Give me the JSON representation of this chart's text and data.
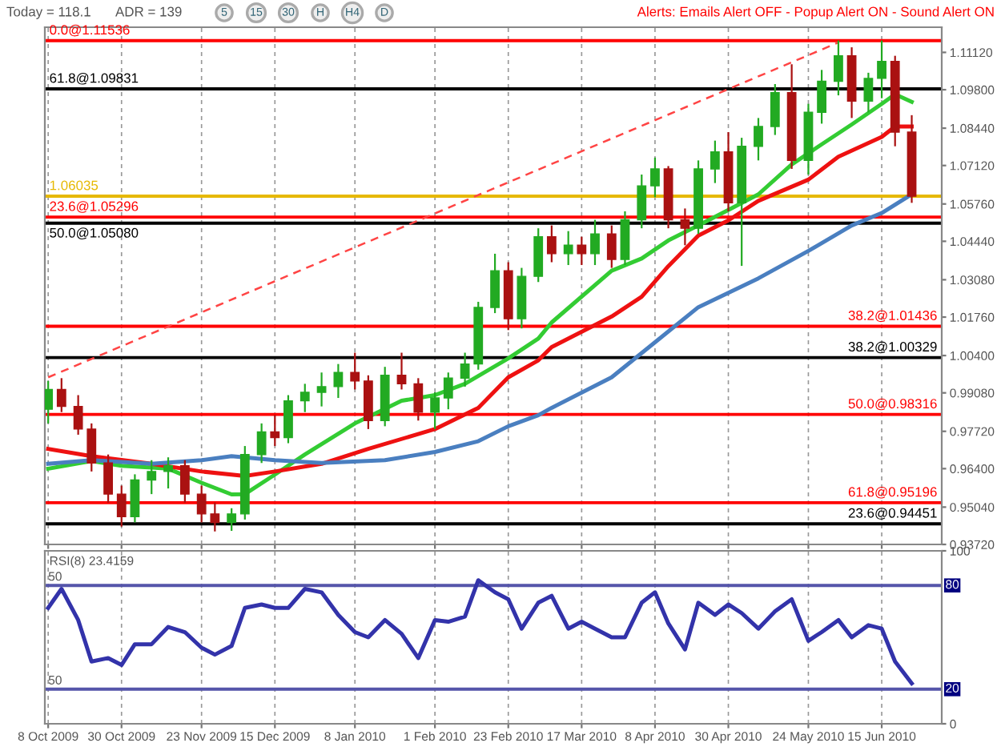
{
  "chart_data": [
    {
      "type": "candlestick",
      "x": [
        "2009-10-08",
        "2009-10-12",
        "2009-10-17",
        "2009-10-21",
        "2009-10-26",
        "2009-10-30",
        "2009-11-03",
        "2009-11-08",
        "2009-11-13",
        "2009-11-18",
        "2009-11-23",
        "2009-11-27",
        "2009-12-02",
        "2009-12-06",
        "2009-12-11",
        "2009-12-15",
        "2009-12-19",
        "2009-12-24",
        "2009-12-29",
        "2010-01-03",
        "2010-01-08",
        "2010-01-12",
        "2010-01-17",
        "2010-01-22",
        "2010-01-27",
        "2010-02-01",
        "2010-02-05",
        "2010-02-10",
        "2010-02-14",
        "2010-02-19",
        "2010-02-23",
        "2010-02-27",
        "2010-03-04",
        "2010-03-08",
        "2010-03-13",
        "2010-03-17",
        "2010-03-21",
        "2010-03-26",
        "2010-03-30",
        "2010-04-04",
        "2010-04-08",
        "2010-04-12",
        "2010-04-17",
        "2010-04-21",
        "2010-04-26",
        "2010-04-30",
        "2010-05-04",
        "2010-05-09",
        "2010-05-14",
        "2010-05-19",
        "2010-05-24",
        "2010-05-28",
        "2010-06-02",
        "2010-06-06",
        "2010-06-11",
        "2010-06-15",
        "2010-06-19",
        "2010-06-24"
      ],
      "ohlc": [
        [
          0.985,
          0.995,
          0.98,
          0.992
        ],
        [
          0.992,
          0.996,
          0.984,
          0.986
        ],
        [
          0.986,
          0.99,
          0.976,
          0.978
        ],
        [
          0.978,
          0.98,
          0.963,
          0.966
        ],
        [
          0.966,
          0.969,
          0.952,
          0.955
        ],
        [
          0.955,
          0.958,
          0.9435,
          0.947
        ],
        [
          0.947,
          0.962,
          0.945,
          0.96
        ],
        [
          0.96,
          0.967,
          0.955,
          0.963
        ],
        [
          0.963,
          0.968,
          0.957,
          0.965
        ],
        [
          0.965,
          0.967,
          0.952,
          0.955
        ],
        [
          0.955,
          0.958,
          0.945,
          0.948
        ],
        [
          0.948,
          0.952,
          0.9418,
          0.945
        ],
        [
          0.945,
          0.95,
          0.942,
          0.948
        ],
        [
          0.948,
          0.972,
          0.946,
          0.969
        ],
        [
          0.969,
          0.98,
          0.966,
          0.977
        ],
        [
          0.977,
          0.983,
          0.972,
          0.975
        ],
        [
          0.975,
          0.99,
          0.973,
          0.988
        ],
        [
          0.988,
          0.994,
          0.984,
          0.991
        ],
        [
          0.991,
          0.998,
          0.986,
          0.993
        ],
        [
          0.993,
          1.001,
          0.989,
          0.998
        ],
        [
          0.998,
          1.005,
          0.992,
          0.995
        ],
        [
          0.995,
          0.997,
          0.978,
          0.981
        ],
        [
          0.981,
          1.0,
          0.979,
          0.997
        ],
        [
          0.997,
          1.005,
          0.992,
          0.994
        ],
        [
          0.994,
          0.996,
          0.981,
          0.984
        ],
        [
          0.984,
          0.991,
          0.978,
          0.989
        ],
        [
          0.989,
          0.998,
          0.985,
          0.996
        ],
        [
          0.996,
          1.005,
          0.993,
          1.001
        ],
        [
          1.001,
          1.023,
          0.999,
          1.021
        ],
        [
          1.021,
          1.04,
          1.019,
          1.034
        ],
        [
          1.034,
          1.037,
          1.013,
          1.017
        ],
        [
          1.017,
          1.035,
          1.0136,
          1.032
        ],
        [
          1.032,
          1.049,
          1.03,
          1.046
        ],
        [
          1.046,
          1.05,
          1.037,
          1.04
        ],
        [
          1.04,
          1.048,
          1.036,
          1.043
        ],
        [
          1.043,
          1.046,
          1.036,
          1.04
        ],
        [
          1.04,
          1.052,
          1.036,
          1.047
        ],
        [
          1.047,
          1.05,
          1.035,
          1.038
        ],
        [
          1.038,
          1.055,
          1.036,
          1.052
        ],
        [
          1.052,
          1.068,
          1.049,
          1.064
        ],
        [
          1.064,
          1.074,
          1.06,
          1.07
        ],
        [
          1.07,
          1.071,
          1.049,
          1.052
        ],
        [
          1.052,
          1.056,
          1.043,
          1.049
        ],
        [
          1.049,
          1.073,
          1.047,
          1.07
        ],
        [
          1.07,
          1.08,
          1.065,
          1.076
        ],
        [
          1.076,
          1.083,
          1.055,
          1.058
        ],
        [
          1.058,
          1.081,
          1.0357,
          1.078
        ],
        [
          1.078,
          1.088,
          1.073,
          1.085
        ],
        [
          1.085,
          1.1,
          1.082,
          1.097
        ],
        [
          1.097,
          1.107,
          1.07,
          1.073
        ],
        [
          1.073,
          1.093,
          1.068,
          1.09
        ],
        [
          1.09,
          1.105,
          1.086,
          1.101
        ],
        [
          1.101,
          1.1154,
          1.096,
          1.11
        ],
        [
          1.11,
          1.113,
          1.088,
          1.094
        ],
        [
          1.094,
          1.104,
          1.09,
          1.102
        ],
        [
          1.102,
          1.1154,
          1.095,
          1.108
        ],
        [
          1.108,
          1.11,
          1.078,
          1.083
        ],
        [
          1.083,
          1.089,
          1.058,
          1.06035
        ]
      ],
      "colors": [
        "#22aa22",
        "#aa1111",
        "#aa1111",
        "#aa1111",
        "#aa1111",
        "#aa1111",
        "#22aa22",
        "#22aa22",
        "#22aa22",
        "#aa1111",
        "#aa1111",
        "#aa1111",
        "#22aa22",
        "#22aa22",
        "#22aa22",
        "#aa1111",
        "#22aa22",
        "#22aa22",
        "#22aa22",
        "#22aa22",
        "#aa1111",
        "#aa1111",
        "#22aa22",
        "#aa1111",
        "#aa1111",
        "#22aa22",
        "#22aa22",
        "#22aa22",
        "#22aa22",
        "#22aa22",
        "#aa1111",
        "#22aa22",
        "#22aa22",
        "#aa1111",
        "#22aa22",
        "#aa1111",
        "#22aa22",
        "#aa1111",
        "#22aa22",
        "#22aa22",
        "#22aa22",
        "#aa1111",
        "#aa1111",
        "#22aa22",
        "#22aa22",
        "#aa1111",
        "#22aa22",
        "#22aa22",
        "#22aa22",
        "#aa1111",
        "#22aa22",
        "#22aa22",
        "#22aa22",
        "#aa1111",
        "#22aa22",
        "#22aa22",
        "#aa1111",
        "#aa1111"
      ],
      "series": [
        {
          "type": "line",
          "color": "#33cc33",
          "x": [
            "2009-10-08",
            "2009-10-21",
            "2009-10-30",
            "2009-11-13",
            "2009-11-23",
            "2009-12-02",
            "2009-12-06",
            "2009-12-15",
            "2009-12-24",
            "2010-01-08",
            "2010-01-22",
            "2010-02-01",
            "2010-02-10",
            "2010-02-23",
            "2010-03-04",
            "2010-03-08",
            "2010-03-26",
            "2010-04-04",
            "2010-04-12",
            "2010-04-21",
            "2010-04-30",
            "2010-05-09",
            "2010-05-19",
            "2010-05-28",
            "2010-06-06",
            "2010-06-15",
            "2010-06-19",
            "2010-06-24"
          ],
          "values": [
            0.964,
            0.9667,
            0.965,
            0.964,
            0.959,
            0.9549,
            0.955,
            0.9619,
            0.969,
            0.98,
            0.988,
            0.99,
            0.994,
            1.003,
            1.01,
            1.0157,
            1.034,
            1.0383,
            1.0447,
            1.05,
            1.0555,
            1.061,
            1.0716,
            1.0787,
            1.0857,
            1.093,
            1.0964,
            1.0937
          ]
        },
        {
          "type": "line",
          "color": "#ee1111",
          "x": [
            "2009-10-08",
            "2009-10-21",
            "2009-11-08",
            "2009-11-23",
            "2009-12-06",
            "2009-12-15",
            "2009-12-29",
            "2010-01-12",
            "2010-02-01",
            "2010-02-14",
            "2010-02-23",
            "2010-03-04",
            "2010-03-08",
            "2010-03-26",
            "2010-04-04",
            "2010-04-12",
            "2010-04-21",
            "2010-04-30",
            "2010-05-09",
            "2010-05-24",
            "2010-06-02",
            "2010-06-15",
            "2010-06-19",
            "2010-06-24"
          ],
          "values": [
            0.971,
            0.9684,
            0.9657,
            0.963,
            0.9614,
            0.963,
            0.9657,
            0.971,
            0.978,
            0.9855,
            0.9963,
            1.0023,
            1.007,
            1.0178,
            1.0248,
            1.0356,
            1.0464,
            1.0518,
            1.0587,
            1.0662,
            1.0743,
            1.0813,
            1.085,
            1.085
          ]
        },
        {
          "type": "line",
          "color": "#4a7fc0",
          "x": [
            "2009-10-08",
            "2009-10-21",
            "2009-11-08",
            "2009-11-23",
            "2009-12-02",
            "2009-12-15",
            "2009-12-29",
            "2010-01-17",
            "2010-02-01",
            "2010-02-14",
            "2010-02-23",
            "2010-03-04",
            "2010-03-08",
            "2010-03-26",
            "2010-04-08",
            "2010-04-21",
            "2010-05-09",
            "2010-05-24",
            "2010-06-06",
            "2010-06-15",
            "2010-06-24"
          ],
          "values": [
            0.9657,
            0.967,
            0.9657,
            0.967,
            0.9684,
            0.967,
            0.966,
            0.967,
            0.9699,
            0.9737,
            0.979,
            0.9829,
            0.9855,
            0.9963,
            1.0087,
            1.0211,
            1.0313,
            1.041,
            1.05,
            1.0544,
            1.061
          ]
        },
        {
          "type": "line",
          "color": "#ff4444",
          "line_style": "dashed",
          "x": [
            "2009-10-08",
            "2010-06-02"
          ],
          "values": [
            0.9963,
            1.1147
          ]
        }
      ],
      "ref_lines": [
        {
          "axis": "y",
          "value": 1.11536,
          "label": "0.0@1.11536",
          "color": "#ff0000"
        },
        {
          "axis": "y",
          "value": 1.09831,
          "label": "61.8@1.09831",
          "color": "#000000"
        },
        {
          "axis": "y",
          "value": 1.06035,
          "label": "1.06035",
          "color": "#e6b800"
        },
        {
          "axis": "y",
          "value": 1.05296,
          "label": "23.6@1.05296",
          "color": "#ff0000"
        },
        {
          "axis": "y",
          "value": 1.0508,
          "label": "50.0@1.05080",
          "color": "#000000"
        },
        {
          "axis": "y",
          "value": 1.01436,
          "label": "38.2@1.01436",
          "color": "#ff0000"
        },
        {
          "axis": "y",
          "value": 1.00329,
          "label": "38.2@1.00329",
          "color": "#000000"
        },
        {
          "axis": "y",
          "value": 0.98316,
          "label": "50.0@0.98316",
          "color": "#ff0000"
        },
        {
          "axis": "y",
          "value": 0.95196,
          "label": "61.8@0.95196",
          "color": "#ff0000"
        },
        {
          "axis": "y",
          "value": 0.94451,
          "label": "23.6@0.94451",
          "color": "#000000"
        }
      ],
      "annotations": [
        "Today = 118.1",
        "ADR = 139",
        "5",
        "15",
        "30",
        "H",
        "H4",
        "D",
        "Alerts: Emails Alert OFF - Popup Alert ON - Sound Alert ON"
      ],
      "xlim": [
        "2009-10-07",
        "2010-07-03"
      ],
      "xticks": [
        {
          "value": "2009-10-08",
          "label": null
        },
        {
          "value": "2009-10-30",
          "label": null
        },
        {
          "value": "2009-11-23",
          "label": null
        },
        {
          "value": "2009-12-15",
          "label": null
        },
        {
          "value": "2010-01-08",
          "label": null
        },
        {
          "value": "2010-02-01",
          "label": null
        },
        {
          "value": "2010-02-23",
          "label": null
        },
        {
          "value": "2010-03-17",
          "label": null
        },
        {
          "value": "2010-04-08",
          "label": null
        },
        {
          "value": "2010-04-30",
          "label": null
        },
        {
          "value": "2010-05-24",
          "label": null
        },
        {
          "value": "2010-06-15",
          "label": null
        }
      ],
      "ylim": [
        0.9372,
        1.1201
      ],
      "yticks": [
        {
          "value": 0.9372,
          "label": "0.93720"
        },
        {
          "value": 0.9504,
          "label": "0.95040"
        },
        {
          "value": 0.964,
          "label": "0.96400"
        },
        {
          "value": 0.9772,
          "label": "0.97720"
        },
        {
          "value": 0.9908,
          "label": "0.99080"
        },
        {
          "value": 1.004,
          "label": "1.00400"
        },
        {
          "value": 1.0176,
          "label": "1.01760"
        },
        {
          "value": 1.0308,
          "label": "1.03080"
        },
        {
          "value": 1.0444,
          "label": "1.04440"
        },
        {
          "value": 1.0576,
          "label": "1.05760"
        },
        {
          "value": 1.0712,
          "label": "1.07120"
        },
        {
          "value": 1.0844,
          "label": "1.08440"
        },
        {
          "value": 1.098,
          "label": "1.09800"
        },
        {
          "value": 1.1112,
          "label": "1.11120"
        }
      ],
      "tick_labels": "y",
      "grid": "x"
    },
    {
      "type": "line",
      "x": [
        "2009-10-08",
        "2009-10-12",
        "2009-10-17",
        "2009-10-21",
        "2009-10-26",
        "2009-10-30",
        "2009-11-03",
        "2009-11-08",
        "2009-11-13",
        "2009-11-18",
        "2009-11-23",
        "2009-11-27",
        "2009-12-02",
        "2009-12-06",
        "2009-12-11",
        "2009-12-15",
        "2009-12-19",
        "2009-12-24",
        "2009-12-29",
        "2010-01-03",
        "2010-01-08",
        "2010-01-12",
        "2010-01-17",
        "2010-01-22",
        "2010-01-27",
        "2010-02-01",
        "2010-02-05",
        "2010-02-10",
        "2010-02-14",
        "2010-02-19",
        "2010-02-23",
        "2010-02-27",
        "2010-03-04",
        "2010-03-08",
        "2010-03-13",
        "2010-03-17",
        "2010-03-21",
        "2010-03-26",
        "2010-03-30",
        "2010-04-04",
        "2010-04-08",
        "2010-04-12",
        "2010-04-17",
        "2010-04-21",
        "2010-04-26",
        "2010-04-30",
        "2010-05-04",
        "2010-05-09",
        "2010-05-14",
        "2010-05-19",
        "2010-05-24",
        "2010-05-28",
        "2010-06-02",
        "2010-06-06",
        "2010-06-11",
        "2010-06-15",
        "2010-06-19",
        "2010-06-24"
      ],
      "series": [
        {
          "color": "#3333aa",
          "values": [
            67,
            78,
            60,
            36,
            38,
            34,
            46,
            46,
            56,
            53,
            44,
            40,
            45,
            67,
            69,
            67,
            67,
            78,
            76,
            63,
            53,
            50,
            60,
            52,
            38,
            60,
            59,
            62,
            83,
            76,
            72,
            55,
            70,
            74,
            55,
            59,
            55,
            50,
            50,
            70,
            76,
            58,
            43,
            70,
            63,
            69,
            64,
            55,
            65,
            72,
            48,
            53,
            60,
            50,
            57,
            55,
            36,
            23.4159
          ]
        }
      ],
      "ref_lines": [
        {
          "axis": "y",
          "value": 80,
          "label": "80",
          "color": "#5555aa"
        },
        {
          "axis": "y",
          "value": 20,
          "label": "20",
          "color": "#5555aa"
        }
      ],
      "annotations": [
        "RSI(8) 23.4159",
        {
          "text": "50",
          "x": "2009-10-08",
          "y": 80
        },
        {
          "text": "50",
          "x": "2009-10-08",
          "y": 20
        }
      ],
      "xlim": [
        "2009-10-07",
        "2010-07-03"
      ],
      "xticks": [
        {
          "value": "2009-10-08",
          "label": "8 Oct 2009"
        },
        {
          "value": "2009-10-30",
          "label": "30 Oct 2009"
        },
        {
          "value": "2009-11-23",
          "label": "23 Nov 2009"
        },
        {
          "value": "2009-12-15",
          "label": "15 Dec 2009"
        },
        {
          "value": "2010-01-08",
          "label": "8 Jan 2010"
        },
        {
          "value": "2010-02-01",
          "label": "1 Feb 2010"
        },
        {
          "value": "2010-02-23",
          "label": "23 Feb 2010"
        },
        {
          "value": "2010-03-17",
          "label": "17 Mar 2010"
        },
        {
          "value": "2010-04-08",
          "label": "8 Apr 2010"
        },
        {
          "value": "2010-04-30",
          "label": "30 Apr 2010"
        },
        {
          "value": "2010-05-24",
          "label": "24 May 2010"
        },
        {
          "value": "2010-06-15",
          "label": "15 Jun 2010"
        }
      ],
      "ylim": [
        0,
        100
      ],
      "yticks": [
        0,
        100
      ],
      "grid": "x"
    }
  ]
}
